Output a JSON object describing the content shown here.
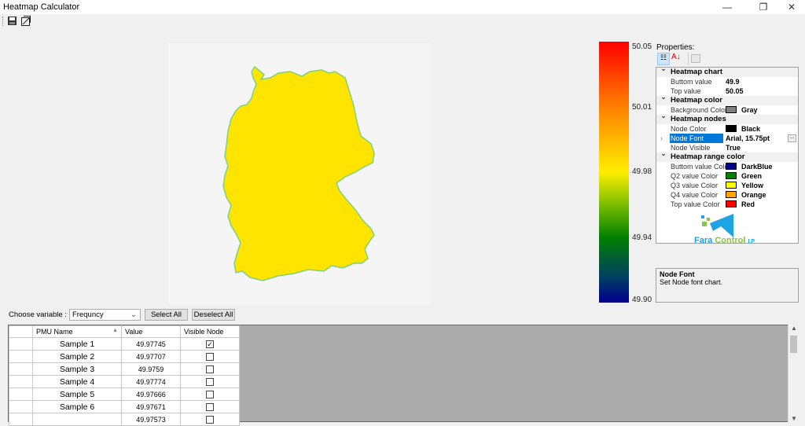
{
  "window": {
    "title": "Heatmap Calculator",
    "minimize": "—",
    "restore": "❐",
    "close": "✕"
  },
  "toolbar": {
    "icons": [
      "save-icon",
      "resize-icon"
    ]
  },
  "colorbar": {
    "ticks": [
      "50.05",
      "50.01",
      "49.98",
      "49.94",
      "49.90"
    ],
    "colors": [
      "#ff0000",
      "#ff8000",
      "#ffee00",
      "#008000",
      "#000090"
    ]
  },
  "map": {
    "fill": "#ffe400",
    "border": "#7fd07f"
  },
  "properties": {
    "label": "Properties:",
    "categories": [
      {
        "name": "Heatmap chart",
        "items": [
          {
            "name": "Buttom value",
            "value": "49.9"
          },
          {
            "name": "Top value",
            "value": "50.05"
          }
        ]
      },
      {
        "name": "Heatmap color",
        "items": [
          {
            "name": "Background Color",
            "value": "Gray",
            "color": "#808080"
          }
        ]
      },
      {
        "name": "Heatmap nodes",
        "items": [
          {
            "name": "Node Color",
            "value": "Black",
            "color": "#000000"
          },
          {
            "name": "Node Font",
            "value": "Arial, 15.75pt",
            "selected": true
          },
          {
            "name": "Node Visible",
            "value": "True"
          }
        ]
      },
      {
        "name": "Heatmap range color",
        "items": [
          {
            "name": "Buttom value Colo",
            "value": "DarkBlue",
            "color": "#00008b"
          },
          {
            "name": "Q2 value Color",
            "value": "Green",
            "color": "#008000"
          },
          {
            "name": "Q3 value Color",
            "value": "Yellow",
            "color": "#ffff00"
          },
          {
            "name": "Q4 value Color",
            "value": "Orange",
            "color": "#ffa500"
          },
          {
            "name": "Top value Color",
            "value": "Red",
            "color": "#ff0000"
          }
        ]
      }
    ],
    "logo": {
      "word1": "Fara",
      "word2": "Control",
      "suffix": "I.P"
    },
    "description": {
      "title": "Node Font",
      "text": "Set Node font chart."
    }
  },
  "controls": {
    "choose_label": "Choose variable :",
    "variable": "Frequncy",
    "select_all": "Select All",
    "deselect_all": "Deselect All"
  },
  "table": {
    "headers": [
      "PMU Name",
      "Value",
      "Visible Node"
    ],
    "rows": [
      {
        "name": "Sample 1",
        "value": "49.97745",
        "visible": true
      },
      {
        "name": "Sample 2",
        "value": "49.97707",
        "visible": false
      },
      {
        "name": "Sample 3",
        "value": "49.9759",
        "visible": false
      },
      {
        "name": "Sample 4",
        "value": "49.97774",
        "visible": false
      },
      {
        "name": "Sample 5",
        "value": "49.97666",
        "visible": false
      },
      {
        "name": "Sample 6",
        "value": "49.97671",
        "visible": false
      },
      {
        "name": "",
        "value": "49.97573",
        "visible": false
      }
    ]
  }
}
